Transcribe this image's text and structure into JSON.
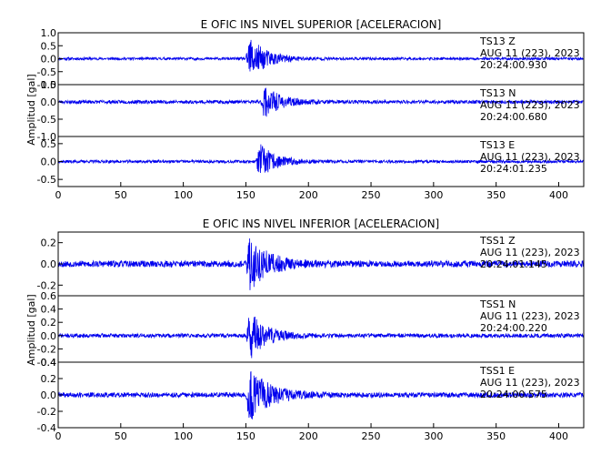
{
  "chart_data": [
    {
      "type": "line",
      "title": "E OFIC INS NIVEL SUPERIOR [ACELERACION]",
      "ylabel": "Amplitud [gal]",
      "xlabel": "",
      "xlim": [
        0,
        420
      ],
      "xticks": [
        "0",
        "50",
        "100",
        "150",
        "200",
        "250",
        "300",
        "350",
        "400"
      ],
      "grid": false,
      "line_color": "#0000ee",
      "panels": [
        {
          "name": "sup-z",
          "station": "TS13   Z",
          "date": "AUG 11 (223), 2023",
          "time": "20:24:00.930",
          "ylim": [
            -1.0,
            1.0
          ],
          "yticks": [
            "1.0",
            "0.5",
            "0.0",
            "-0.5",
            "-1.0"
          ],
          "noise": 0.05,
          "onset": 150,
          "peak": 1.0,
          "decay": 14,
          "seed": 11
        },
        {
          "name": "sup-n",
          "station": "TS13   N",
          "date": "AUG 11 (223), 2023",
          "time": "20:24:00.680",
          "ylim": [
            -1.0,
            0.5
          ],
          "yticks": [
            "0.5",
            "0.0",
            "-0.5",
            "-1.0"
          ],
          "noise": 0.05,
          "onset": 162,
          "peak": 0.6,
          "decay": 12,
          "seed": 23
        },
        {
          "name": "sup-e",
          "station": "TS13   E",
          "date": "AUG 11 (223), 2023",
          "time": "20:24:01.235",
          "ylim": [
            -0.7,
            0.7
          ],
          "yticks": [
            "0.5",
            "0.0",
            "-0.5"
          ],
          "noise": 0.04,
          "onset": 158,
          "peak": 0.6,
          "decay": 13,
          "seed": 37
        }
      ]
    },
    {
      "type": "line",
      "title": "E OFIC INS NIVEL INFERIOR [ACELERACION]",
      "ylabel": "Amplitud [gal]",
      "xlabel": "",
      "xlim": [
        0,
        420
      ],
      "xticks": [
        "0",
        "50",
        "100",
        "150",
        "200",
        "250",
        "300",
        "350",
        "400"
      ],
      "grid": false,
      "line_color": "#0000ee",
      "panels": [
        {
          "name": "inf-z",
          "station": "TSS1   Z",
          "date": "AUG 11 (223), 2023",
          "time": "20:24:01.145",
          "ylim": [
            -0.3,
            0.3
          ],
          "yticks": [
            "0.2",
            "0.0",
            "-0.2"
          ],
          "noise": 0.03,
          "onset": 150,
          "peak": 0.3,
          "decay": 15,
          "seed": 53
        },
        {
          "name": "inf-n",
          "station": "TSS1   N",
          "date": "AUG 11 (223), 2023",
          "time": "20:24:00.220",
          "ylim": [
            -0.4,
            0.6
          ],
          "yticks": [
            "0.6",
            "0.4",
            "0.2",
            "0.0",
            "-0.2",
            "-0.4"
          ],
          "noise": 0.03,
          "onset": 150,
          "peak": 0.45,
          "decay": 13,
          "seed": 71
        },
        {
          "name": "inf-e",
          "station": "TSS1   E",
          "date": "AUG 11 (223), 2023",
          "time": "20:24:00.575",
          "ylim": [
            -0.4,
            0.4
          ],
          "yticks": [
            "0.4",
            "0.2",
            "0.0",
            "-0.2",
            "-0.4"
          ],
          "noise": 0.03,
          "onset": 150,
          "peak": 0.4,
          "decay": 16,
          "seed": 89
        }
      ]
    }
  ]
}
